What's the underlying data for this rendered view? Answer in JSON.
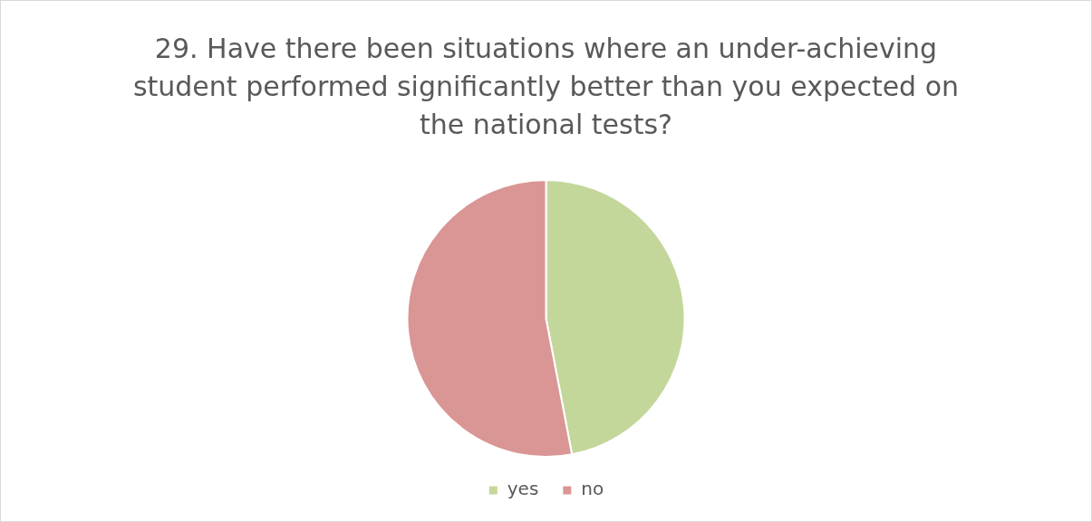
{
  "chart_data": {
    "type": "pie",
    "title": "29. Have there been situations where an under-achieving student performed significantly better than you expected on the national tests?",
    "categories": [
      "yes",
      "no"
    ],
    "values": [
      47,
      53
    ],
    "colors": [
      "#c4d79b",
      "#d99694"
    ],
    "legend": "bottom"
  }
}
